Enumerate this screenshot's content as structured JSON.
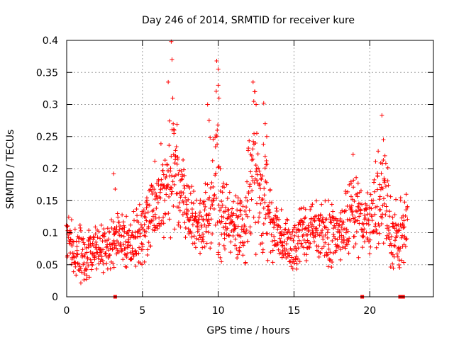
{
  "chart_data": {
    "type": "scatter",
    "title": "Day 246 of 2014, SRMTID for receiver kure",
    "xlabel": "GPS time / hours",
    "ylabel": "SRMTID / TECUs",
    "xlim": [
      0,
      24.2
    ],
    "ylim": [
      0,
      0.4
    ],
    "x_ticks": [
      0,
      5,
      10,
      15,
      20
    ],
    "y_ticks": [
      0,
      0.05,
      0.1,
      0.15,
      0.2,
      0.25,
      0.3,
      0.35,
      0.4
    ],
    "x_tick_labels": [
      "0",
      "5",
      "10",
      "15",
      "20"
    ],
    "y_tick_labels": [
      "0",
      "0.05",
      "0.1",
      "0.15",
      "0.2",
      "0.25",
      "0.3",
      "0.35",
      "0.4"
    ],
    "grid": true,
    "marker": "+",
    "color": "#ff0000",
    "series": [
      {
        "name": "SRMTID",
        "envelope": [
          {
            "x": 0.0,
            "low": 0.035,
            "high": 0.14
          },
          {
            "x": 1.0,
            "low": 0.02,
            "high": 0.11
          },
          {
            "x": 2.0,
            "low": 0.035,
            "high": 0.11
          },
          {
            "x": 2.8,
            "low": 0.04,
            "high": 0.12
          },
          {
            "x": 3.5,
            "low": 0.05,
            "high": 0.14
          },
          {
            "x": 4.2,
            "low": 0.04,
            "high": 0.13
          },
          {
            "x": 5.0,
            "low": 0.05,
            "high": 0.15
          },
          {
            "x": 6.0,
            "low": 0.07,
            "high": 0.24
          },
          {
            "x": 6.5,
            "low": 0.08,
            "high": 0.24
          },
          {
            "x": 7.0,
            "low": 0.09,
            "high": 0.32
          },
          {
            "x": 7.5,
            "low": 0.1,
            "high": 0.23
          },
          {
            "x": 8.0,
            "low": 0.08,
            "high": 0.2
          },
          {
            "x": 8.5,
            "low": 0.07,
            "high": 0.16
          },
          {
            "x": 9.0,
            "low": 0.06,
            "high": 0.16
          },
          {
            "x": 9.5,
            "low": 0.05,
            "high": 0.27
          },
          {
            "x": 10.0,
            "low": 0.05,
            "high": 0.34
          },
          {
            "x": 10.5,
            "low": 0.06,
            "high": 0.18
          },
          {
            "x": 11.0,
            "low": 0.06,
            "high": 0.16
          },
          {
            "x": 11.5,
            "low": 0.04,
            "high": 0.16
          },
          {
            "x": 12.0,
            "low": 0.05,
            "high": 0.24
          },
          {
            "x": 12.4,
            "low": 0.06,
            "high": 0.33
          },
          {
            "x": 12.8,
            "low": 0.04,
            "high": 0.22
          },
          {
            "x": 13.2,
            "low": 0.05,
            "high": 0.28
          },
          {
            "x": 13.6,
            "low": 0.05,
            "high": 0.16
          },
          {
            "x": 14.0,
            "low": 0.05,
            "high": 0.14
          },
          {
            "x": 15.0,
            "low": 0.03,
            "high": 0.13
          },
          {
            "x": 16.0,
            "low": 0.06,
            "high": 0.15
          },
          {
            "x": 17.0,
            "low": 0.04,
            "high": 0.15
          },
          {
            "x": 18.0,
            "low": 0.05,
            "high": 0.15
          },
          {
            "x": 19.0,
            "low": 0.06,
            "high": 0.2
          },
          {
            "x": 20.0,
            "low": 0.06,
            "high": 0.16
          },
          {
            "x": 20.8,
            "low": 0.06,
            "high": 0.27
          },
          {
            "x": 21.5,
            "low": 0.04,
            "high": 0.15
          },
          {
            "x": 22.5,
            "low": 0.05,
            "high": 0.17
          }
        ],
        "peaks": [
          {
            "x": 3.1,
            "y": 0.192
          },
          {
            "x": 3.2,
            "y": 0.168
          },
          {
            "x": 6.7,
            "y": 0.335
          },
          {
            "x": 6.9,
            "y": 0.398
          },
          {
            "x": 6.95,
            "y": 0.37
          },
          {
            "x": 7.0,
            "y": 0.31
          },
          {
            "x": 7.1,
            "y": 0.26
          },
          {
            "x": 9.3,
            "y": 0.3
          },
          {
            "x": 9.4,
            "y": 0.275
          },
          {
            "x": 9.9,
            "y": 0.368
          },
          {
            "x": 10.0,
            "y": 0.355
          },
          {
            "x": 10.0,
            "y": 0.33
          },
          {
            "x": 10.05,
            "y": 0.31
          },
          {
            "x": 12.3,
            "y": 0.335
          },
          {
            "x": 12.4,
            "y": 0.32
          },
          {
            "x": 12.5,
            "y": 0.3
          },
          {
            "x": 13.0,
            "y": 0.302
          },
          {
            "x": 13.1,
            "y": 0.27
          },
          {
            "x": 13.2,
            "y": 0.25
          },
          {
            "x": 18.9,
            "y": 0.222
          },
          {
            "x": 20.8,
            "y": 0.283
          },
          {
            "x": 20.9,
            "y": 0.245
          },
          {
            "x": 21.0,
            "y": 0.22
          }
        ]
      }
    ],
    "gap_markers_x": [
      3.2,
      19.5,
      22.0,
      22.1,
      22.2
    ]
  }
}
